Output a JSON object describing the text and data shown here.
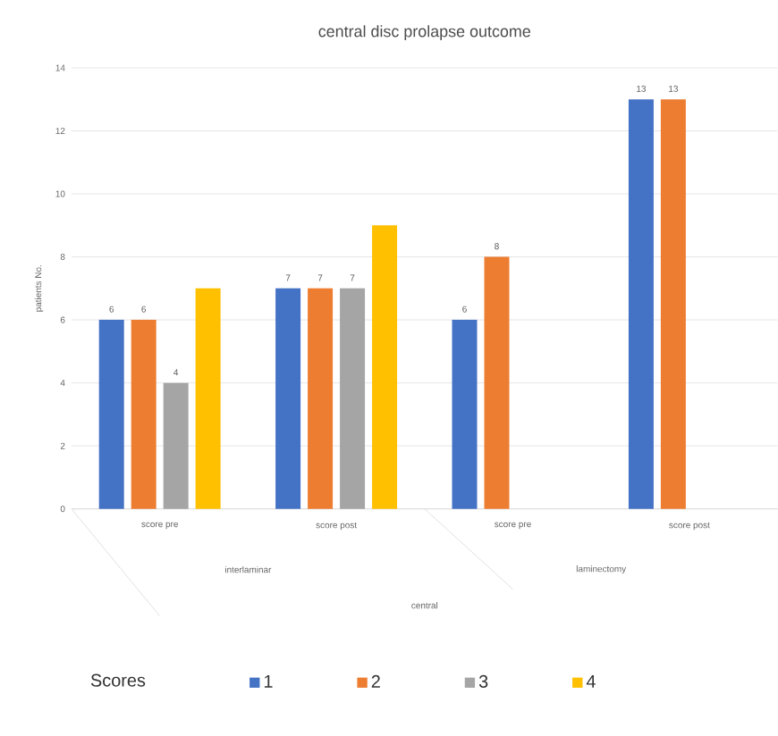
{
  "chart_data": {
    "type": "bar",
    "title": "central disc prolapse outcome",
    "ylabel": "patients No.",
    "categories": [
      "score pre",
      "score post",
      "score pre",
      "score post"
    ],
    "annotations": [
      "interlaminar",
      "laminectomy",
      "central"
    ],
    "legend_title": "Scores",
    "legend": "bottom",
    "grid": "y",
    "ylim": [
      0,
      14
    ],
    "yticks": [
      0,
      2,
      4,
      6,
      8,
      10,
      12,
      14
    ],
    "series": [
      {
        "name": "1",
        "color": "#4472c4",
        "values": [
          6,
          7,
          6,
          13
        ],
        "value_labels": [
          "6",
          "7",
          "6",
          "13"
        ]
      },
      {
        "name": "2",
        "color": "#ed7d31",
        "values": [
          6,
          7,
          8,
          13
        ],
        "value_labels": [
          "6",
          "7",
          "8",
          "13"
        ]
      },
      {
        "name": "3",
        "color": "#a5a5a5",
        "values": [
          4,
          7,
          null,
          null
        ],
        "value_labels": [
          "4",
          "7",
          null,
          null
        ]
      },
      {
        "name": "4",
        "color": "#ffc000",
        "values": [
          7,
          9,
          null,
          null
        ]
      }
    ]
  }
}
